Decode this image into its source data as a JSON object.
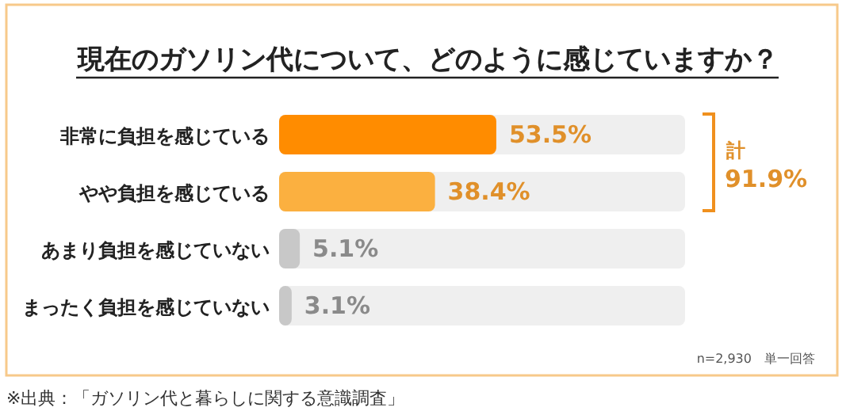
{
  "chart_data": {
    "type": "bar",
    "orientation": "horizontal",
    "title": "現在のガソリン代について、どのように感じていますか？",
    "categories": [
      "非常に負担を感じている",
      "やや負担を感じている",
      "あまり負担を感じていない",
      "まったく負担を感じていない"
    ],
    "values": [
      53.5,
      38.4,
      5.1,
      3.1
    ],
    "colors": [
      "#ff8c00",
      "#fbb040",
      "#c8c8c8",
      "#c8c8c8"
    ],
    "value_labels": [
      "53.5%",
      "38.4%",
      "5.1%",
      "3.1%"
    ],
    "xlim": [
      0,
      100
    ],
    "annotations": [
      "計",
      "91.9%",
      "n=2,930　単一回答",
      "※出典：「ガソリン代と暮らしに関する意識調査」"
    ]
  }
}
